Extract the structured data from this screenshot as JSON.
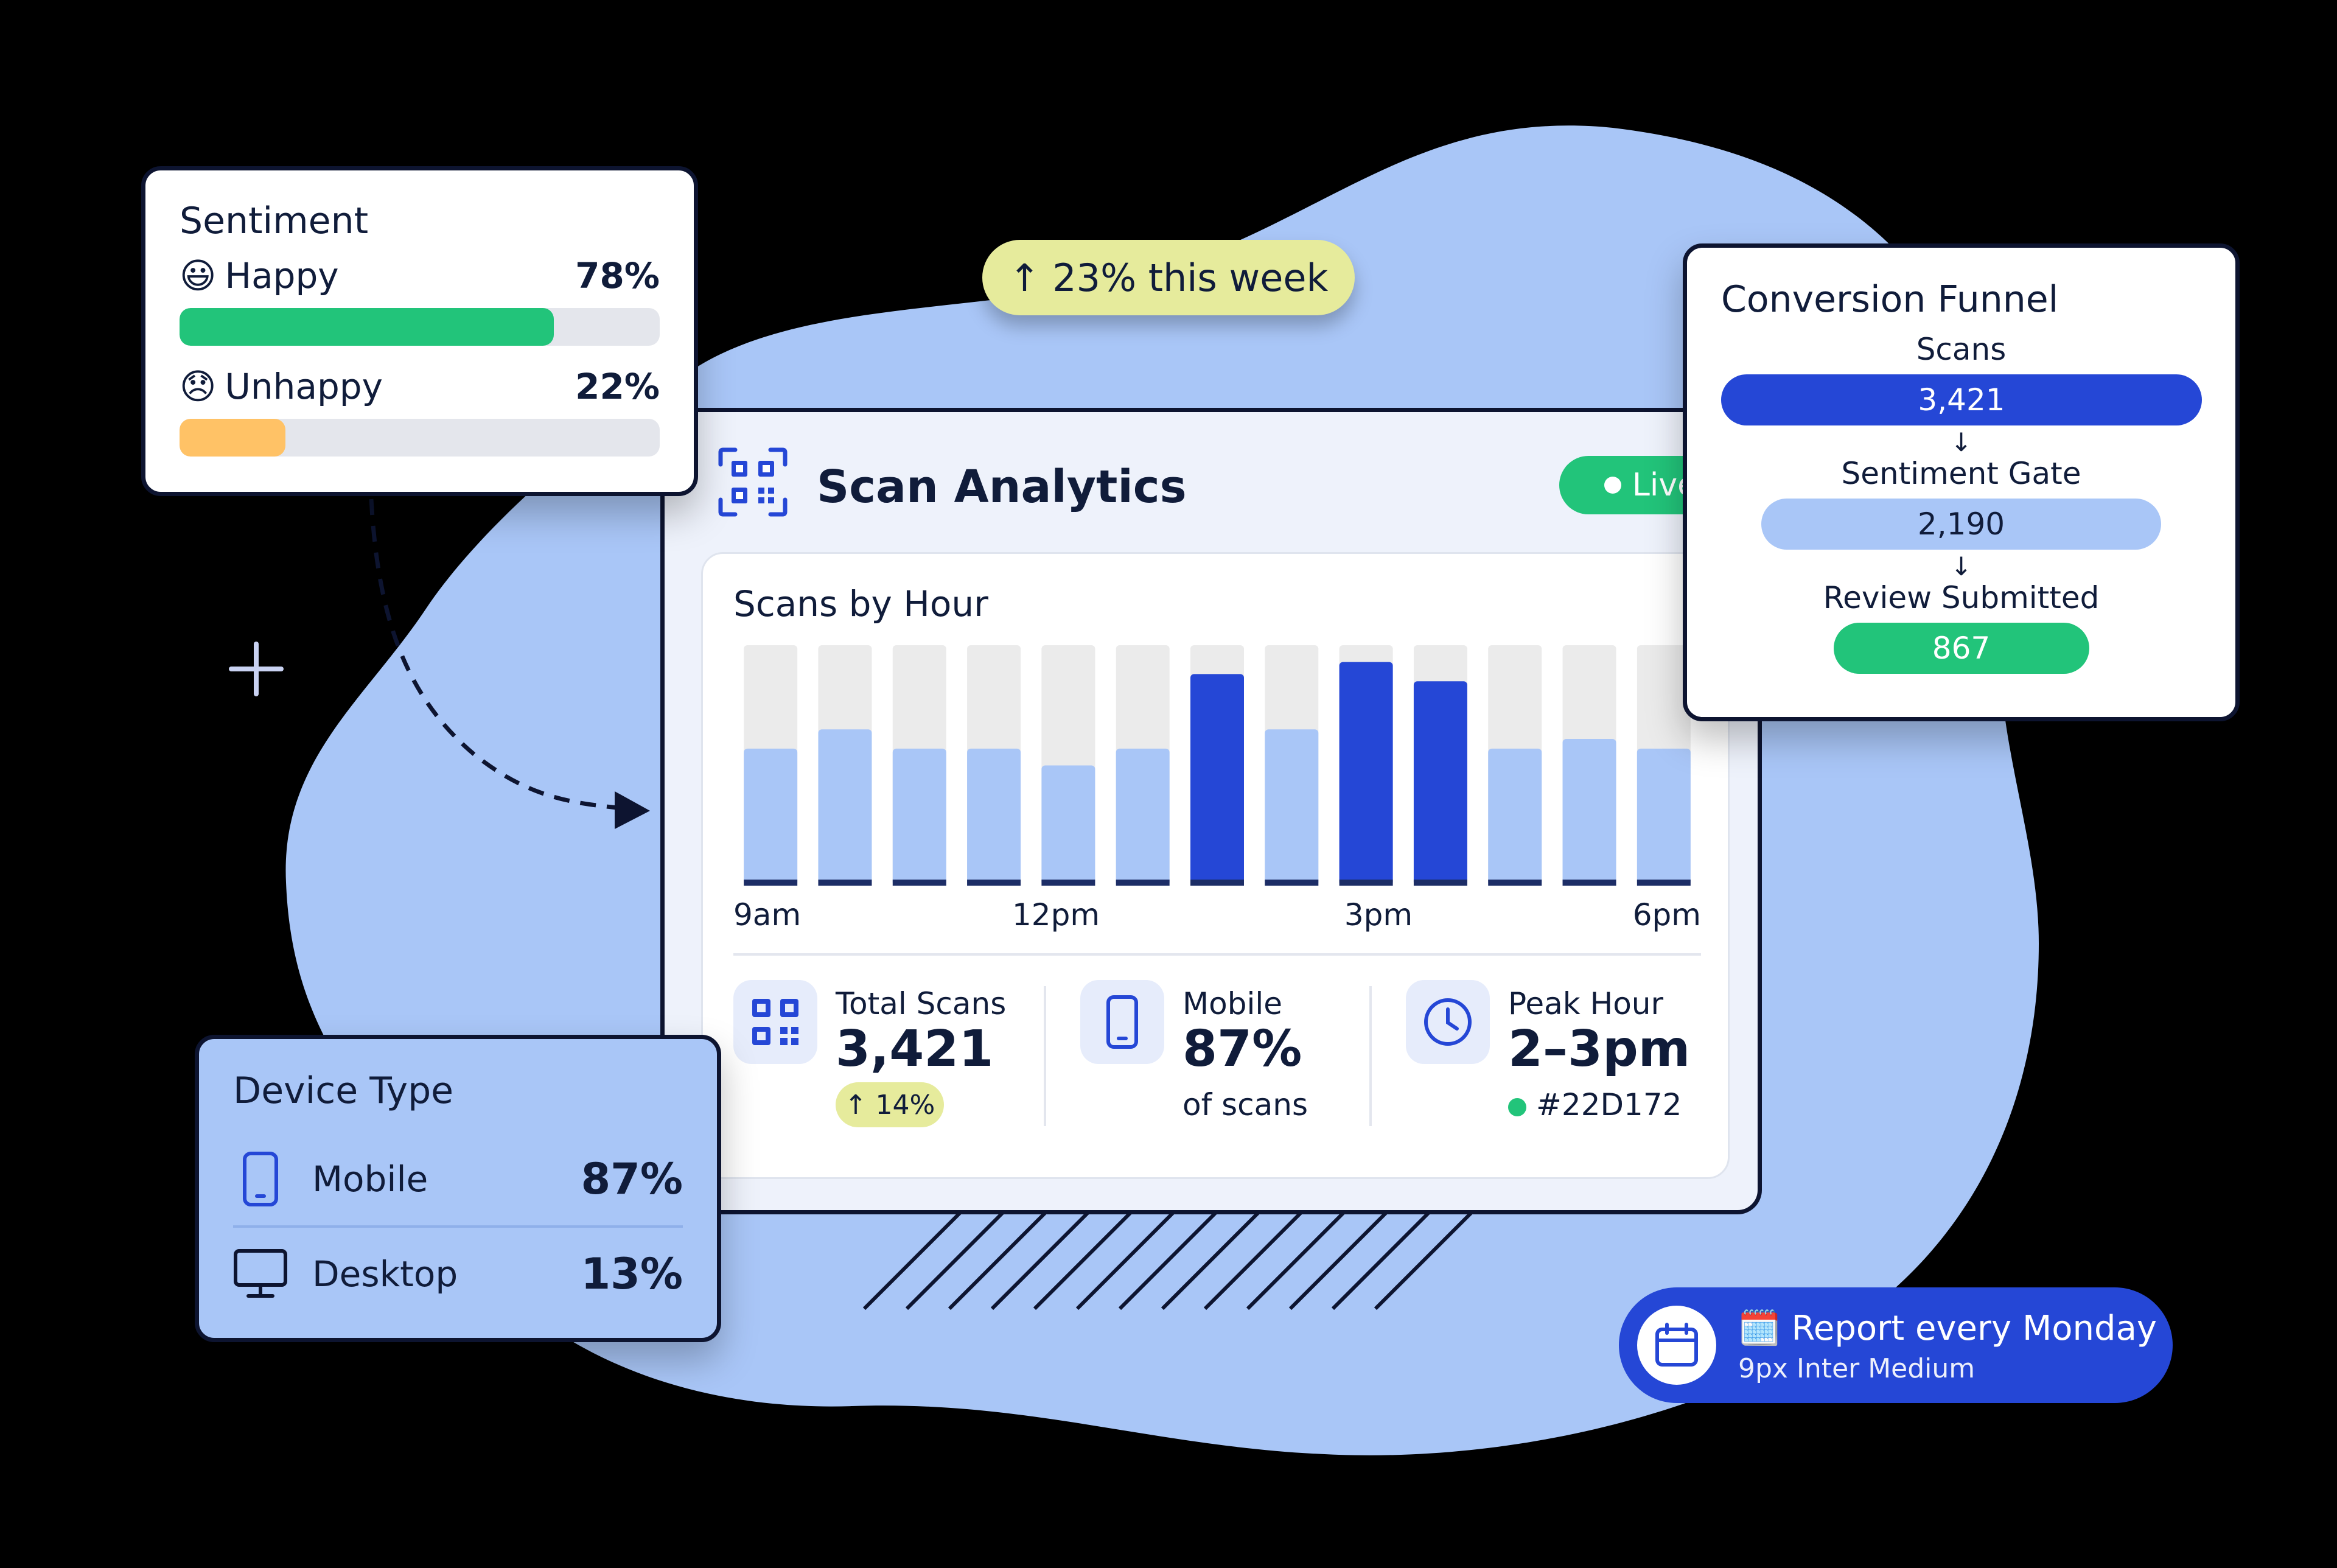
{
  "colors": {
    "background": "#000000",
    "blob": "#a9c6f7",
    "accent_blue": "#2547d6",
    "light_blue": "#a9c6f7",
    "green": "#22c47a",
    "orange": "#ffc266",
    "yellow_pill": "#e6eb9c",
    "dark_text": "#101c3a"
  },
  "growth_pill": {
    "label": "↑ 23% this week"
  },
  "sentiment": {
    "title": "Sentiment",
    "rows": [
      {
        "emoji": "😃",
        "label": "Happy",
        "pct_label": "78%",
        "value": 0.78,
        "color": "#22c47a"
      },
      {
        "emoji": "😞",
        "label": "Unhappy",
        "pct_label": "22%",
        "value": 0.22,
        "color": "#ffc266"
      }
    ]
  },
  "main": {
    "title": "Scan Analytics",
    "header_icon": "qr-code-icon",
    "live_label": "Live",
    "chart_data": {
      "type": "bar",
      "title": "Scans by Hour",
      "x_tick_labels": [
        "9am",
        "12pm",
        "3pm",
        "6pm"
      ],
      "values": [
        0.57,
        0.65,
        0.57,
        0.57,
        0.5,
        0.57,
        0.88,
        0.65,
        0.93,
        0.85,
        0.57,
        0.61,
        0.57
      ],
      "highlight": [
        false,
        false,
        false,
        false,
        false,
        false,
        true,
        false,
        true,
        true,
        false,
        false,
        false
      ],
      "ylim": [
        0,
        1
      ],
      "grid": false,
      "colors": {
        "normal": "#a9c6f7",
        "highlight": "#2547d6",
        "background_bar": "#ebebeb"
      }
    },
    "stats": [
      {
        "icon": "qr-code-icon",
        "label": "Total Scans",
        "value": "3,421",
        "delta": "↑ 14%"
      },
      {
        "icon": "mobile-phone-icon",
        "label": "Mobile",
        "value": "87%",
        "sub": "of scans"
      },
      {
        "icon": "clock-icon",
        "label": "Peak Hour",
        "value": "2–3pm",
        "sub": "#22D172"
      }
    ]
  },
  "funnel": {
    "title": "Conversion Funnel",
    "stages": [
      {
        "label": "Scans",
        "value_label": "3,421",
        "value": 3421,
        "color": "#2547d6",
        "text_color": "#ffffff"
      },
      {
        "label": "Sentiment Gate",
        "value_label": "2,190",
        "value": 2190,
        "color": "#a9c6f7",
        "text_color": "#101c3a"
      },
      {
        "label": "Review Submitted",
        "value_label": "867",
        "value": 867,
        "color": "#22c47a",
        "text_color": "#ffffff"
      }
    ],
    "arrow": "↓"
  },
  "device": {
    "title": "Device Type",
    "rows": [
      {
        "icon": "mobile-phone-icon",
        "label": "Mobile",
        "pct_label": "87%"
      },
      {
        "icon": "desktop-monitor-icon",
        "label": "Desktop",
        "pct_label": "13%"
      }
    ]
  },
  "report": {
    "icon": "calendar-icon",
    "title": "🗓️ Report every Monday",
    "subtitle": "9px Inter Medium"
  }
}
